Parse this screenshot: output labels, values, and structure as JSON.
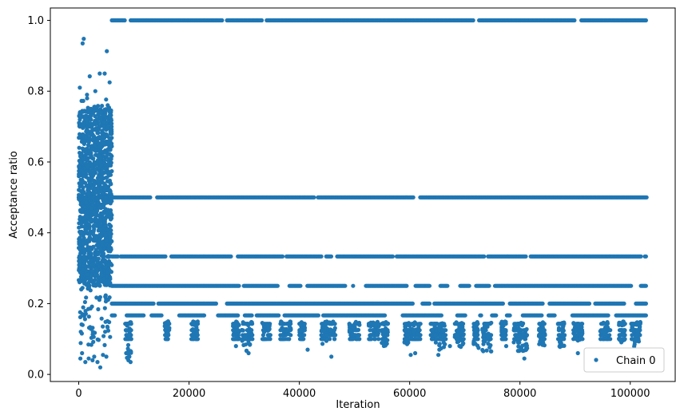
{
  "chart_data": {
    "type": "scatter",
    "xlabel": "Iteration",
    "ylabel": "Acceptance ratio",
    "xlim": [
      -5150,
      108150
    ],
    "ylim": [
      -0.02,
      1.035
    ],
    "x_ticks": [
      0,
      20000,
      40000,
      60000,
      80000,
      100000
    ],
    "x_tick_labels": [
      "0",
      "20000",
      "40000",
      "60000",
      "80000",
      "100000"
    ],
    "y_ticks": [
      0.0,
      0.2,
      0.4,
      0.6,
      0.8,
      1.0
    ],
    "y_tick_labels": [
      "0.0",
      "0.2",
      "0.4",
      "0.6",
      "0.8",
      "1.0"
    ],
    "grid": false,
    "legend_position": "lower-right",
    "marker_color": "#1f77b4",
    "series": [
      {
        "name": "Chain 0",
        "description_levels": [
          1.0,
          0.5,
          0.3333,
          0.25,
          0.2,
          0.1667,
          0.1429,
          0.125,
          0.1111,
          0.1
        ],
        "level_runs": [
          {
            "y": 1.0,
            "x_start": 6000,
            "x_end": 103000
          },
          {
            "y": 0.5,
            "x_start": 0,
            "x_end": 103000
          },
          {
            "y": 0.3333,
            "x_start": 6000,
            "x_end": 103000
          },
          {
            "y": 0.25,
            "x_start": 6000,
            "x_end": 103000
          },
          {
            "y": 0.2,
            "x_start": 6000,
            "x_end": 103000
          },
          {
            "y": 0.1667,
            "x_start": 6000,
            "x_end": 103000
          }
        ],
        "burn_in": {
          "x_start": 0,
          "x_end": 6000,
          "y_min": 0.02,
          "y_max": 0.95
        },
        "scattered_points": [
          [
            900,
            0.948
          ],
          [
            700,
            0.935
          ],
          [
            5100,
            0.913
          ],
          [
            3800,
            0.85
          ],
          [
            4700,
            0.85
          ],
          [
            2000,
            0.842
          ],
          [
            5600,
            0.825
          ],
          [
            200,
            0.81
          ],
          [
            3000,
            0.8
          ],
          [
            1500,
            0.79
          ],
          [
            3400,
            0.035
          ],
          [
            3900,
            0.02
          ],
          [
            2500,
            0.04
          ],
          [
            1200,
            0.035
          ],
          [
            300,
            0.045
          ],
          [
            5000,
            0.05
          ],
          [
            600,
            0.06
          ],
          [
            4400,
            0.055
          ],
          [
            2800,
            0.05
          ],
          [
            1800,
            0.045
          ],
          [
            28500,
            0.08
          ],
          [
            30800,
            0.06
          ],
          [
            41500,
            0.07
          ],
          [
            45800,
            0.05
          ],
          [
            60200,
            0.055
          ],
          [
            61000,
            0.06
          ],
          [
            65200,
            0.055
          ],
          [
            67300,
            0.08
          ],
          [
            72500,
            0.075
          ],
          [
            74800,
            0.065
          ],
          [
            77500,
            0.08
          ],
          [
            80800,
            0.045
          ],
          [
            84200,
            0.09
          ],
          [
            90500,
            0.06
          ],
          [
            95200,
            0.12
          ],
          [
            98800,
            0.14
          ],
          [
            101000,
            0.1
          ],
          [
            9000,
            0.04
          ],
          [
            9400,
            0.035
          ],
          [
            8600,
            0.06
          ]
        ]
      }
    ]
  }
}
